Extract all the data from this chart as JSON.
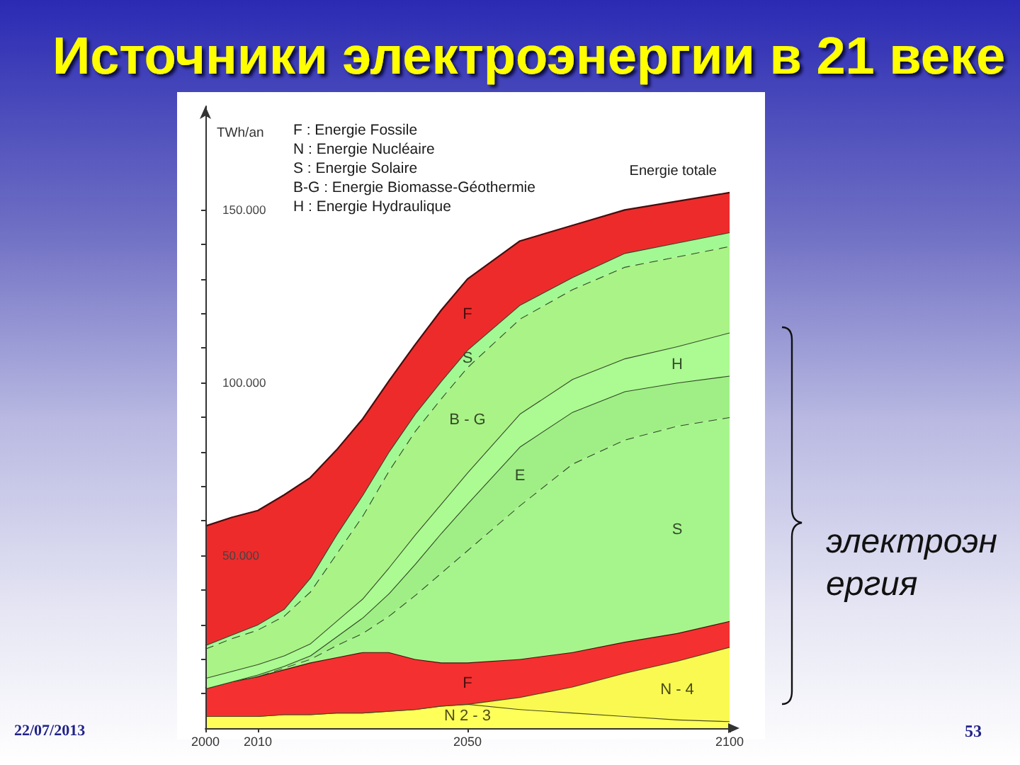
{
  "chart_data": {
    "type": "area",
    "title": "Источники электроэнергии в 21 веке",
    "ylabel": "TWh/an",
    "stacked": true,
    "marker": "none",
    "x": [
      2000,
      2005,
      2010,
      2015,
      2020,
      2025,
      2030,
      2035,
      2040,
      2045,
      2050,
      2060,
      2070,
      2080,
      2090,
      2100
    ],
    "xlim": [
      2000,
      2100
    ],
    "xticks": [
      2000,
      2010,
      2050,
      2100
    ],
    "ylim": [
      0,
      180000
    ],
    "yticks": [
      {
        "value": 10000,
        "label": null
      },
      {
        "value": 20000,
        "label": null
      },
      {
        "value": 30000,
        "label": null
      },
      {
        "value": 40000,
        "label": null
      },
      {
        "value": 50000,
        "label": "50.000"
      },
      {
        "value": 60000,
        "label": null
      },
      {
        "value": 70000,
        "label": null
      },
      {
        "value": 80000,
        "label": null
      },
      {
        "value": 90000,
        "label": null
      },
      {
        "value": 100000,
        "label": "100.000"
      },
      {
        "value": 110000,
        "label": null
      },
      {
        "value": 120000,
        "label": null
      },
      {
        "value": 130000,
        "label": null
      },
      {
        "value": 140000,
        "label": null
      },
      {
        "value": 150000,
        "label": "150.000"
      }
    ],
    "series": [
      {
        "name": "N 2 - 3",
        "color": "#ffff5a",
        "line_style": "solid",
        "values": [
          3500,
          3500,
          3500,
          4000,
          4000,
          4500,
          4500,
          5000,
          5500,
          6500,
          7000,
          5500,
          4500,
          3500,
          2500,
          2000
        ]
      },
      {
        "name": "N - 4",
        "color": "#f9f952",
        "line_style": "solid",
        "values": [
          0,
          0,
          0,
          0,
          0,
          0,
          0,
          0,
          0,
          0,
          0,
          3500,
          7500,
          12500,
          17000,
          21500
        ]
      },
      {
        "name": "F",
        "color": "#f53030",
        "line_style": "solid",
        "values": [
          8000,
          10000,
          11500,
          13000,
          15000,
          16000,
          17500,
          17000,
          14500,
          12500,
          12000,
          11000,
          10000,
          9000,
          8000,
          7500
        ]
      },
      {
        "name": "S",
        "color": "#a6f58c",
        "line_style": "dashed",
        "values": [
          0,
          0,
          0,
          500,
          1000,
          3500,
          5500,
          10500,
          18500,
          26000,
          32500,
          44500,
          54500,
          58500,
          60000,
          59000
        ]
      },
      {
        "name": "E",
        "color": "#a0ef86",
        "line_style": "solid",
        "values": [
          0,
          0,
          500,
          500,
          1000,
          2500,
          4500,
          6500,
          9000,
          11500,
          13500,
          17000,
          15000,
          14000,
          12500,
          12000
        ]
      },
      {
        "name": "H",
        "color": "#acfa92",
        "line_style": "solid",
        "values": [
          3000,
          3000,
          3000,
          3000,
          3500,
          4500,
          5500,
          7500,
          8500,
          8500,
          9000,
          9500,
          9500,
          9500,
          10500,
          12500
        ]
      },
      {
        "name": "B - G",
        "color": "#aaf386",
        "line_style": "dashed",
        "values": [
          8500,
          9500,
          10000,
          11500,
          15000,
          19500,
          24000,
          28000,
          30000,
          30500,
          30500,
          27500,
          26000,
          26500,
          26000,
          25000
        ]
      },
      {
        "name": "S",
        "color": "#a2f892",
        "line_style": "solid",
        "values": [
          1000,
          1000,
          1500,
          2000,
          4000,
          5500,
          6000,
          5500,
          5000,
          5000,
          5000,
          4000,
          3500,
          4000,
          4000,
          4000
        ]
      },
      {
        "name": "F",
        "color": "#ee2b2b",
        "line_style": "solid",
        "values": [
          34500,
          34000,
          33000,
          33000,
          29000,
          24500,
          22000,
          20500,
          20000,
          20500,
          20500,
          18500,
          15000,
          12500,
          12000,
          11500
        ]
      }
    ],
    "annotations": [
      "F : Energie Fossile",
      "N : Energie Nucléaire",
      "S : Energie Solaire",
      "B-G : Energie Biomasse-Géothermie",
      "H : Energie Hydraulique",
      "Energie totale",
      "электроэнергия",
      "22/07/2013",
      "53"
    ]
  }
}
